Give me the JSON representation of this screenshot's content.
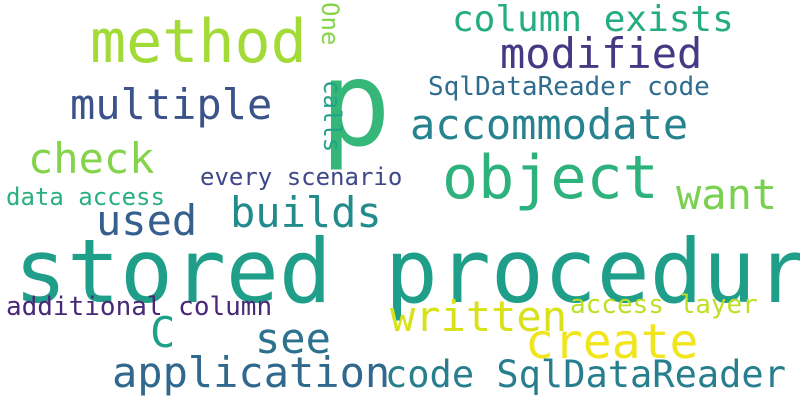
{
  "word_cloud": {
    "background": "#ffffff",
    "words": [
      {
        "id": "stored",
        "text": "stored procedures",
        "color": "#1f9e89"
      },
      {
        "id": "p",
        "text": "p",
        "color": "#35b779"
      },
      {
        "id": "object",
        "text": "object",
        "color": "#2db27d"
      },
      {
        "id": "method",
        "text": "method",
        "color": "#a2da37"
      },
      {
        "id": "modified",
        "text": "modified",
        "color": "#443983"
      },
      {
        "id": "colexists",
        "text": "column exists",
        "color": "#25ac82"
      },
      {
        "id": "multiple",
        "text": "multiple",
        "color": "#3b528b"
      },
      {
        "id": "accommodate",
        "text": "accommodate",
        "color": "#26828e"
      },
      {
        "id": "check",
        "text": "check",
        "color": "#84d44b"
      },
      {
        "id": "want",
        "text": "want",
        "color": "#7ad151"
      },
      {
        "id": "used",
        "text": "used",
        "color": "#355f8d"
      },
      {
        "id": "builds",
        "text": "builds",
        "color": "#228c8d"
      },
      {
        "id": "sqlreader1",
        "text": "SqlDataReader code",
        "color": "#2f6c8e"
      },
      {
        "id": "every",
        "text": "every scenario",
        "color": "#3e4989"
      },
      {
        "id": "dataaccess",
        "text": "data access",
        "color": "#2ab07f"
      },
      {
        "id": "one",
        "text": "One",
        "color": "#86d549"
      },
      {
        "id": "calls",
        "text": "calls",
        "color": "#20a386"
      },
      {
        "id": "addcol",
        "text": "additional column",
        "color": "#482878"
      },
      {
        "id": "accesslayer",
        "text": "access layer",
        "color": "#bddf26"
      },
      {
        "id": "written",
        "text": "written",
        "color": "#d8e219"
      },
      {
        "id": "create",
        "text": "create",
        "color": "#f1e51d"
      },
      {
        "id": "c",
        "text": "C",
        "color": "#1fa088"
      },
      {
        "id": "see",
        "text": "see",
        "color": "#2c728e"
      },
      {
        "id": "application",
        "text": "application",
        "color": "#31688e"
      },
      {
        "id": "codesql",
        "text": "code SqlDataReader",
        "color": "#277f8e"
      }
    ]
  }
}
